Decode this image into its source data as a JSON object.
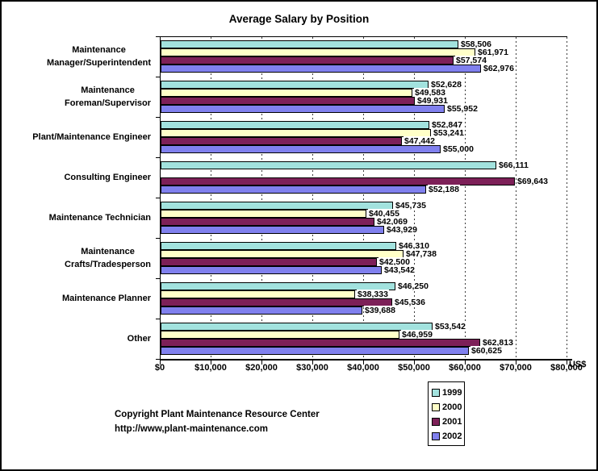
{
  "title": "Average Salary by Position",
  "axis": {
    "unit_label": "US$",
    "tick_labels": [
      "$0",
      "$10,000",
      "$20,000",
      "$30,000",
      "$40,000",
      "$50,000",
      "$60,000",
      "$70,000",
      "$80,000"
    ]
  },
  "footer": {
    "line1": "Copyright Plant Maintenance Resource Center",
    "line2": "http://www,plant-maintenance.com"
  },
  "chart_data": {
    "type": "bar",
    "orientation": "horizontal",
    "title": "Average Salary by Position",
    "xlabel": "US$",
    "xlim": [
      0,
      80000
    ],
    "tick_step": 10000,
    "grid": "vertical dashed gridlines at each $10,000",
    "legend_position": "bottom-right",
    "value_label_format": "$#,##0",
    "categories": [
      "Maintenance Manager/Superintendent",
      "Maintenance Foreman/Supervisor",
      "Plant/Maintenance Engineer",
      "Consulting Engineer",
      "Maintenance Technician",
      "Maintenance Crafts/Tradesperson",
      "Maintenance Planner",
      "Other"
    ],
    "categories_display": [
      [
        "Maintenance",
        "Manager/Superintendent"
      ],
      [
        "Maintenance",
        "Foreman/Supervisor"
      ],
      [
        "Plant/Maintenance Engineer"
      ],
      [
        "Consulting Engineer"
      ],
      [
        "Maintenance Technician"
      ],
      [
        "Maintenance",
        "Crafts/Tradesperson"
      ],
      [
        "Maintenance Planner"
      ],
      [
        "Other"
      ]
    ],
    "series": [
      {
        "name": "1999",
        "color": "#A2E2DE",
        "values": [
          58506,
          52628,
          52847,
          66111,
          45735,
          46310,
          46250,
          53542
        ]
      },
      {
        "name": "2000",
        "color": "#FFFFC8",
        "values": [
          61971,
          49583,
          53241,
          null,
          40455,
          47738,
          38333,
          46959
        ]
      },
      {
        "name": "2001",
        "color": "#7D2058",
        "values": [
          57574,
          49931,
          47442,
          69643,
          42069,
          42500,
          45536,
          62813
        ]
      },
      {
        "name": "2002",
        "color": "#8080EE",
        "values": [
          62976,
          55952,
          55000,
          52188,
          43929,
          43542,
          39688,
          60625
        ]
      }
    ]
  }
}
